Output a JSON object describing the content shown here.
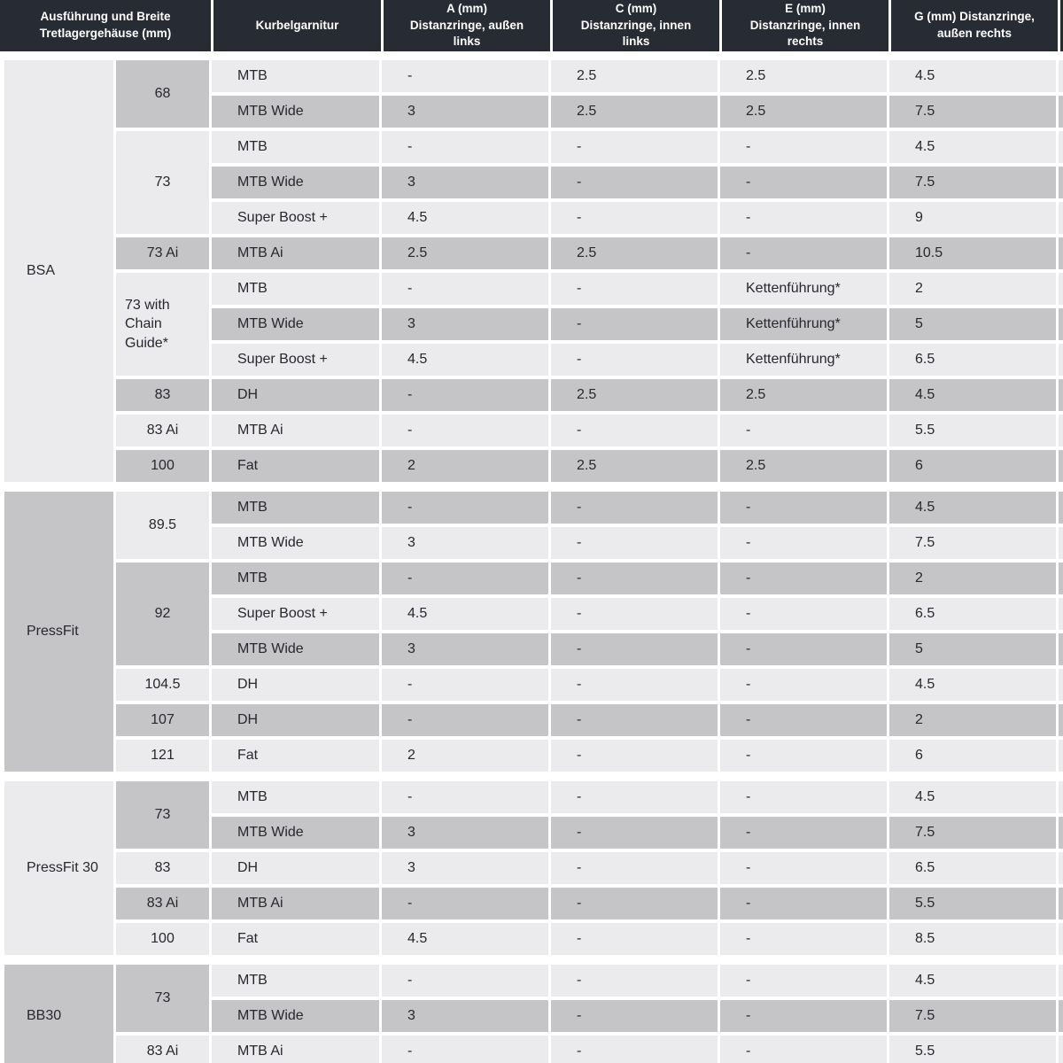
{
  "colors": {
    "header_bg": "#272b34",
    "header_text": "#ffffff",
    "row_light": "#ebebed",
    "row_dark": "#c5c5c7",
    "body_text": "#26282e"
  },
  "table": {
    "header": {
      "shell": "Ausführung und Breite\nTretlagergehäuse (mm)",
      "crankset": "Kurbelgarnitur",
      "a": "A (mm)\nDistanzringe, außen\nlinks",
      "c": "C (mm)\nDistanzringe, innen\nlinks",
      "e": "E (mm)\nDistanzringe, innen\nrechts",
      "g": "G (mm) Distanzringe,\naußen rechts"
    },
    "sections": [
      {
        "label": "BSA",
        "shade": "light",
        "groups": [
          {
            "width": "68",
            "shade": "dark",
            "rows": [
              {
                "crank": "MTB",
                "shade": "light",
                "a": "-",
                "c": "2.5",
                "e": "2.5",
                "g": "4.5"
              },
              {
                "crank": "MTB Wide",
                "shade": "dark",
                "a": "3",
                "c": "2.5",
                "e": "2.5",
                "g": "7.5"
              }
            ]
          },
          {
            "width": "73",
            "shade": "light",
            "rows": [
              {
                "crank": "MTB",
                "shade": "light",
                "a": "-",
                "c": "-",
                "e": "-",
                "g": "4.5"
              },
              {
                "crank": "MTB Wide",
                "shade": "dark",
                "a": "3",
                "c": "-",
                "e": "-",
                "g": "7.5"
              },
              {
                "crank": "Super Boost +",
                "shade": "light",
                "a": "4.5",
                "c": "-",
                "e": "-",
                "g": "9"
              }
            ]
          },
          {
            "width": "73 Ai",
            "shade": "dark",
            "rows": [
              {
                "crank": "MTB Ai",
                "shade": "dark",
                "a": "2.5",
                "c": "2.5",
                "e": "-",
                "g": "10.5"
              }
            ]
          },
          {
            "width": "73 with Chain Guide*",
            "shade": "light",
            "rows": [
              {
                "crank": "MTB",
                "shade": "light",
                "a": "-",
                "c": "-",
                "e": "Kettenführung*",
                "g": "2"
              },
              {
                "crank": "MTB Wide",
                "shade": "dark",
                "a": "3",
                "c": "-",
                "e": "Kettenführung*",
                "g": "5"
              },
              {
                "crank": "Super Boost +",
                "shade": "light",
                "a": "4.5",
                "c": "-",
                "e": "Kettenführung*",
                "g": "6.5"
              }
            ]
          },
          {
            "width": "83",
            "shade": "dark",
            "rows": [
              {
                "crank": "DH",
                "shade": "dark",
                "a": "-",
                "c": "2.5",
                "e": "2.5",
                "g": "4.5"
              }
            ]
          },
          {
            "width": "83 Ai",
            "shade": "light",
            "rows": [
              {
                "crank": "MTB Ai",
                "shade": "light",
                "a": "-",
                "c": "-",
                "e": "-",
                "g": "5.5"
              }
            ]
          },
          {
            "width": "100",
            "shade": "dark",
            "rows": [
              {
                "crank": "Fat",
                "shade": "dark",
                "a": "2",
                "c": "2.5",
                "e": "2.5",
                "g": "6"
              }
            ]
          }
        ]
      },
      {
        "label": "PressFit",
        "shade": "dark",
        "groups": [
          {
            "width": "89.5",
            "shade": "light",
            "rows": [
              {
                "crank": "MTB",
                "shade": "dark",
                "a": "-",
                "c": "-",
                "e": "-",
                "g": "4.5"
              },
              {
                "crank": "MTB Wide",
                "shade": "light",
                "a": "3",
                "c": "-",
                "e": "-",
                "g": "7.5"
              }
            ]
          },
          {
            "width": "92",
            "shade": "dark",
            "rows": [
              {
                "crank": "MTB",
                "shade": "dark",
                "a": "-",
                "c": "-",
                "e": "-",
                "g": "2"
              },
              {
                "crank": "Super Boost +",
                "shade": "light",
                "a": "4.5",
                "c": "-",
                "e": "-",
                "g": "6.5"
              },
              {
                "crank": "MTB Wide",
                "shade": "dark",
                "a": "3",
                "c": "-",
                "e": "-",
                "g": "5"
              }
            ]
          },
          {
            "width": "104.5",
            "shade": "light",
            "rows": [
              {
                "crank": "DH",
                "shade": "light",
                "a": "-",
                "c": "-",
                "e": "-",
                "g": "4.5"
              }
            ]
          },
          {
            "width": "107",
            "shade": "dark",
            "rows": [
              {
                "crank": "DH",
                "shade": "dark",
                "a": "-",
                "c": "-",
                "e": "-",
                "g": "2"
              }
            ]
          },
          {
            "width": "121",
            "shade": "light",
            "rows": [
              {
                "crank": "Fat",
                "shade": "light",
                "a": "2",
                "c": "-",
                "e": "-",
                "g": "6"
              }
            ]
          }
        ]
      },
      {
        "label": "PressFit 30",
        "shade": "light",
        "groups": [
          {
            "width": "73",
            "shade": "dark",
            "rows": [
              {
                "crank": "MTB",
                "shade": "light",
                "a": "-",
                "c": "-",
                "e": "-",
                "g": "4.5"
              },
              {
                "crank": "MTB Wide",
                "shade": "dark",
                "a": "3",
                "c": "-",
                "e": "-",
                "g": "7.5"
              }
            ]
          },
          {
            "width": "83",
            "shade": "light",
            "rows": [
              {
                "crank": "DH",
                "shade": "light",
                "a": "3",
                "c": "-",
                "e": "-",
                "g": "6.5"
              }
            ]
          },
          {
            "width": "83 Ai",
            "shade": "dark",
            "rows": [
              {
                "crank": "MTB Ai",
                "shade": "dark",
                "a": "-",
                "c": "-",
                "e": "-",
                "g": "5.5"
              }
            ]
          },
          {
            "width": "100",
            "shade": "light",
            "rows": [
              {
                "crank": "Fat",
                "shade": "light",
                "a": "4.5",
                "c": "-",
                "e": "-",
                "g": "8.5"
              }
            ]
          }
        ]
      },
      {
        "label": "BB30",
        "shade": "dark",
        "groups": [
          {
            "width": "73",
            "shade": "dark",
            "rows": [
              {
                "crank": "MTB",
                "shade": "light",
                "a": "-",
                "c": "-",
                "e": "-",
                "g": "4.5"
              },
              {
                "crank": "MTB Wide",
                "shade": "dark",
                "a": "3",
                "c": "-",
                "e": "-",
                "g": "7.5"
              }
            ]
          },
          {
            "width": "83 Ai",
            "shade": "light",
            "rows": [
              {
                "crank": "MTB Ai",
                "shade": "light",
                "a": "-",
                "c": "-",
                "e": "-",
                "g": "5.5"
              }
            ]
          }
        ]
      }
    ]
  }
}
